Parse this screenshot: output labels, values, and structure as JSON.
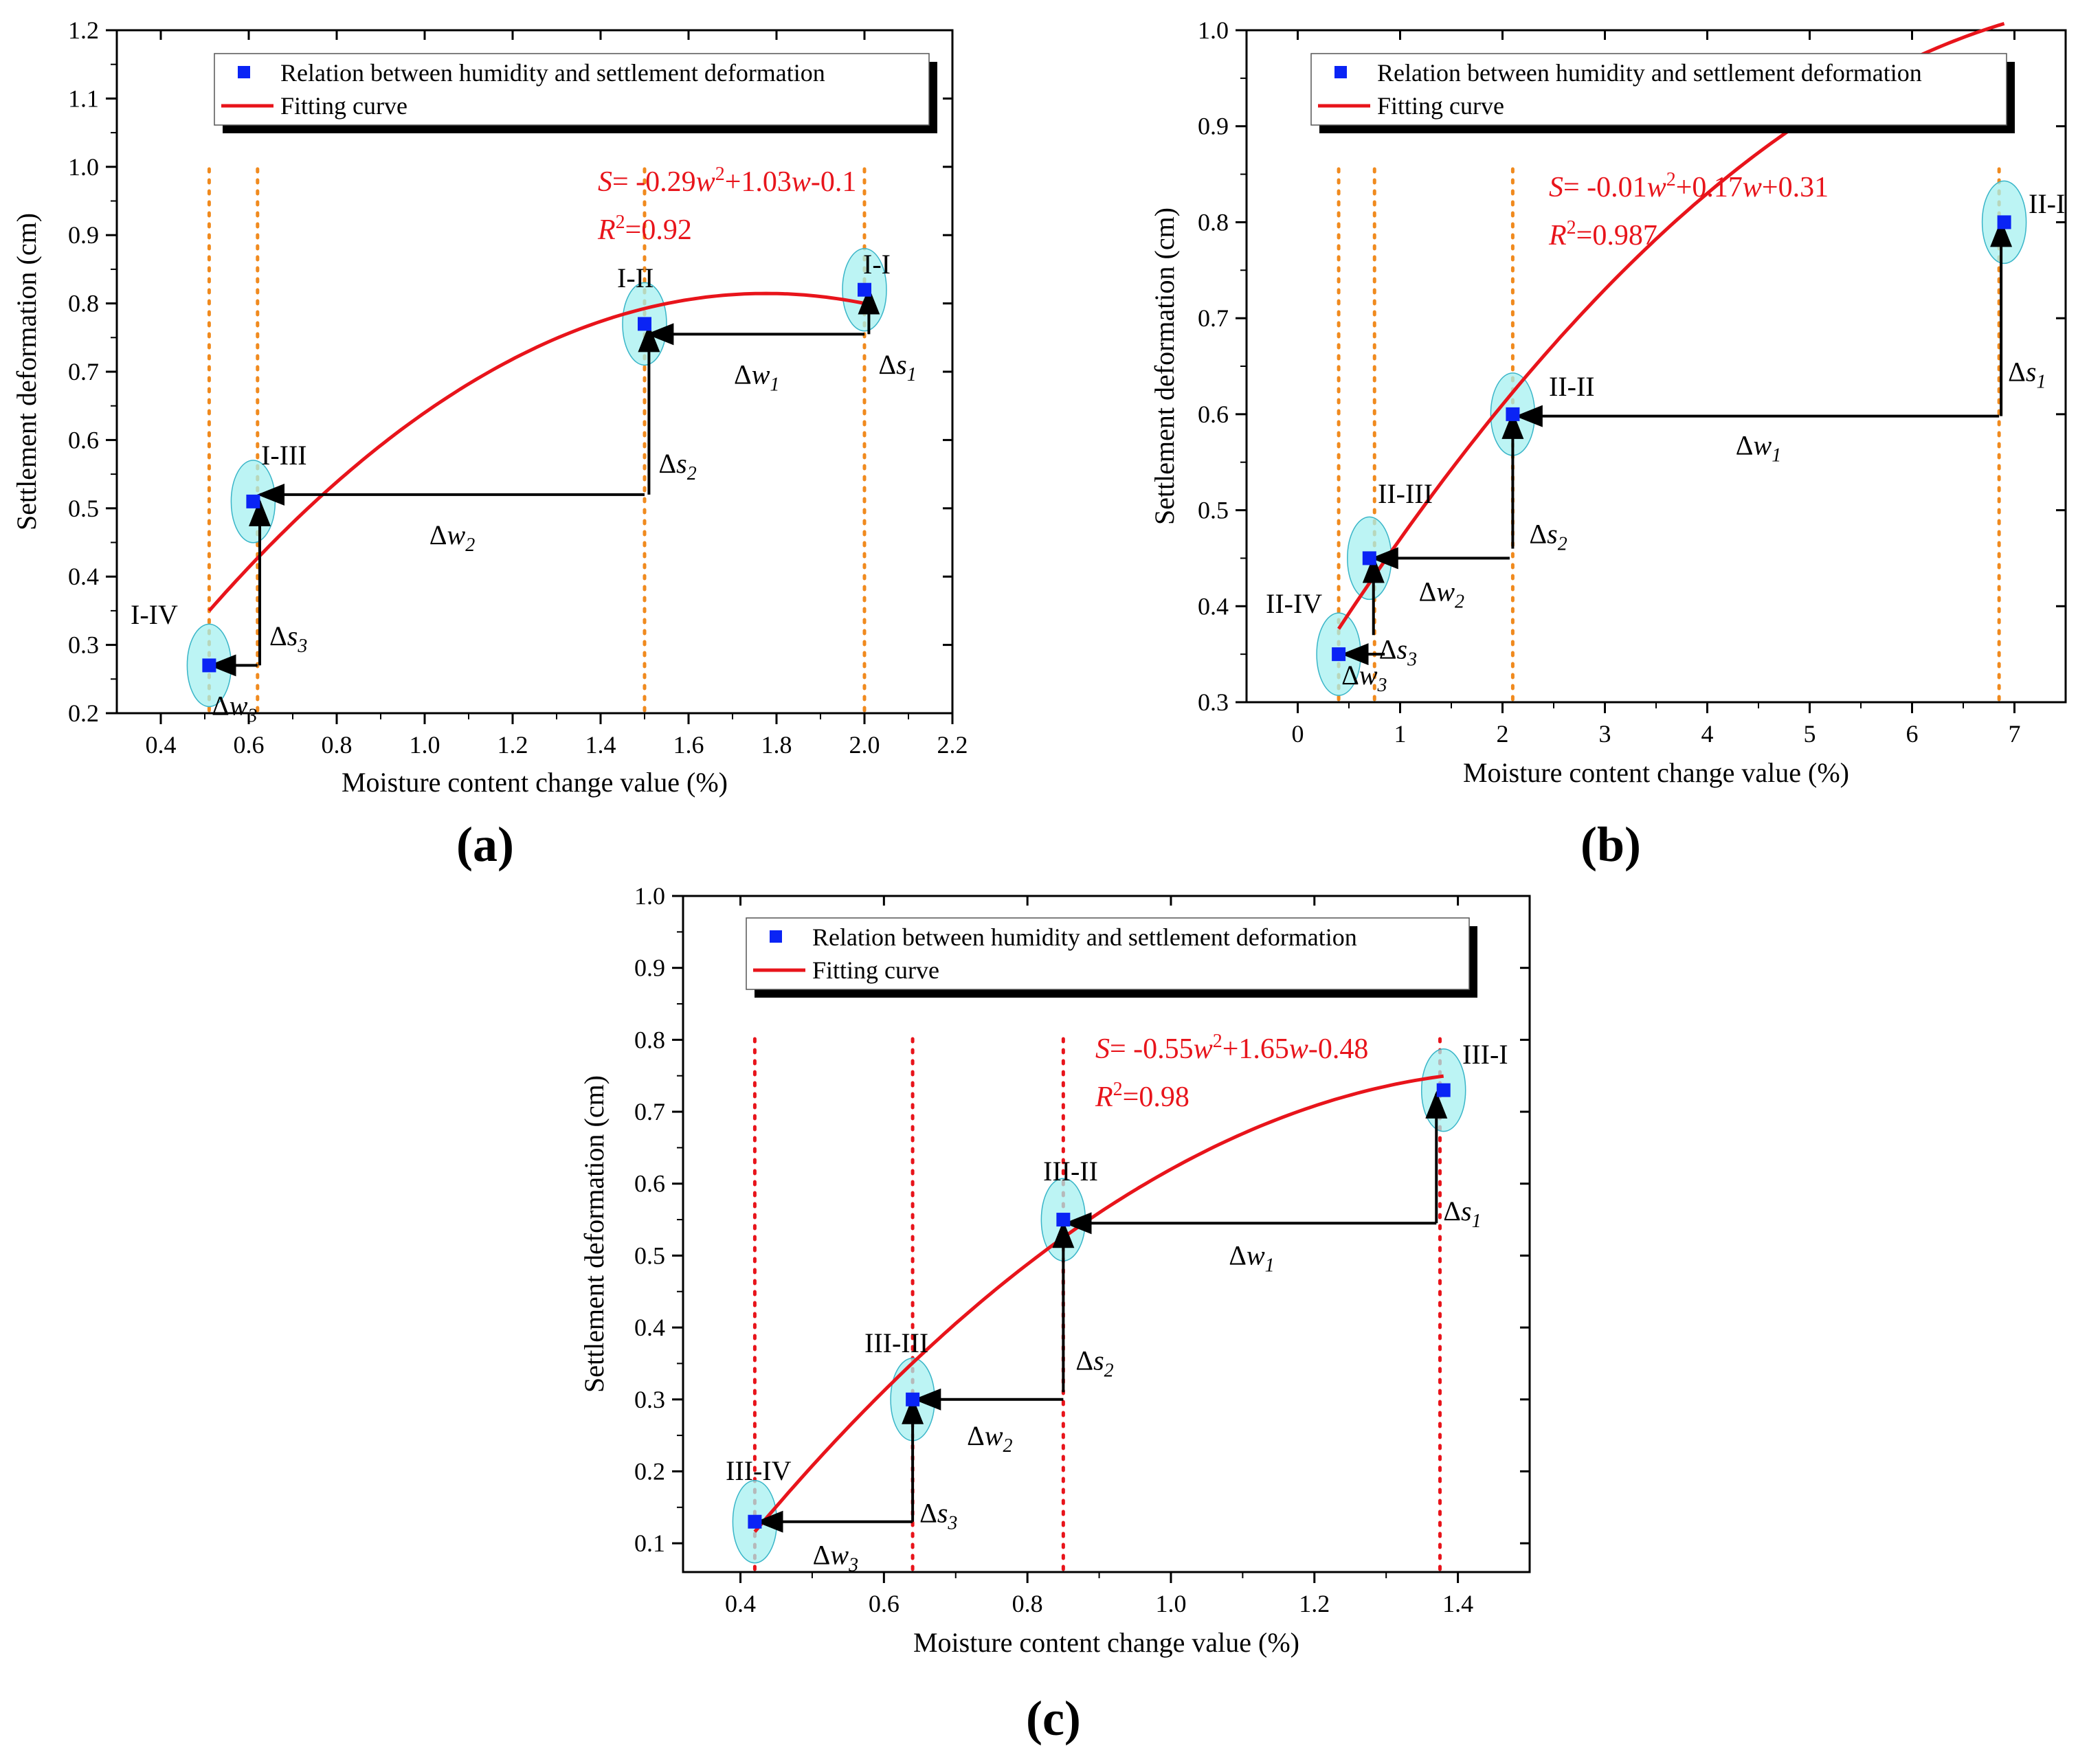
{
  "figure": {
    "panel_labels": [
      "(a)",
      "(b)",
      "(c)"
    ]
  },
  "chart_data": [
    {
      "type": "scatter",
      "panel": "(a)",
      "xlabel": "Moisture content change value (%)",
      "ylabel": "Settlement deformation (cm)",
      "xlim": [
        0.3,
        2.2
      ],
      "ylim": [
        0.2,
        1.2
      ],
      "xticks": [
        0.4,
        0.6,
        0.8,
        1.0,
        1.2,
        1.4,
        1.6,
        1.8,
        2.0,
        2.2
      ],
      "xtick_labels": [
        "0.4",
        "0.6",
        "0.8",
        "1.0",
        "1.2",
        "1.4",
        "1.6",
        "1.8",
        "2.0",
        "2.2"
      ],
      "yticks": [
        0.2,
        0.3,
        0.4,
        0.5,
        0.6,
        0.7,
        0.8,
        0.9,
        1.0,
        1.1,
        1.2
      ],
      "ytick_labels": [
        "0.2",
        "0.3",
        "0.4",
        "0.5",
        "0.6",
        "0.7",
        "0.8",
        "0.9",
        "1.0",
        "1.1",
        "1.2"
      ],
      "legend": {
        "placement": "top-right",
        "entries": [
          "Relation between humidity and settlement deformation",
          "Fitting curve"
        ]
      },
      "colors": {
        "points": "#0a24f5",
        "curve": "#e8141b",
        "guide": "#f08a1e",
        "ellipse": "#a5f0f0",
        "ellipse_edge": "#39b5c8",
        "equation": "#e8141b"
      },
      "points": [
        {
          "x": 2.0,
          "y": 0.82,
          "label": "I-I"
        },
        {
          "x": 1.5,
          "y": 0.77,
          "label": "I-II"
        },
        {
          "x": 0.61,
          "y": 0.51,
          "label": "I-III"
        },
        {
          "x": 0.51,
          "y": 0.27,
          "label": "I-IV"
        }
      ],
      "fit": {
        "a": -0.29,
        "b": 1.03,
        "c": -0.1,
        "x_range": [
          0.51,
          2.0
        ]
      },
      "equation": {
        "s": "S",
        "eq": "= -0.29",
        "w1": "w",
        "sup": "2",
        "mid": "+1.03",
        "w2": "w",
        "tail": "-0.1",
        "r_prefix": "R",
        "r_sup": "2",
        "r_value": "=0.92"
      },
      "guides": [
        0.51,
        0.62,
        1.5,
        2.0
      ],
      "arrows": [
        {
          "type": "w",
          "y": 0.755,
          "from": 2.0,
          "to": 1.51,
          "label": "w",
          "sub": "1"
        },
        {
          "type": "s",
          "x": 2.01,
          "from": 0.755,
          "to": 0.82,
          "label": "s",
          "sub": "1"
        },
        {
          "type": "w",
          "y": 0.52,
          "from": 1.5,
          "to": 0.625,
          "label": "w",
          "sub": "2"
        },
        {
          "type": "s",
          "x": 1.51,
          "from": 0.52,
          "to": 0.765,
          "label": "s",
          "sub": "2"
        },
        {
          "type": "w",
          "y": 0.27,
          "from": 0.62,
          "to": 0.515,
          "label": "w",
          "sub": "3"
        },
        {
          "type": "s",
          "x": 0.625,
          "from": 0.27,
          "to": 0.51,
          "label": "s",
          "sub": "3"
        }
      ]
    },
    {
      "type": "scatter",
      "panel": "(b)",
      "xlabel": "Moisture content change value (%)",
      "ylabel": "Settlement deformation (cm)",
      "xlim": [
        -0.5,
        7.5
      ],
      "ylim": [
        0.3,
        1.0
      ],
      "xticks": [
        0,
        1,
        2,
        3,
        4,
        5,
        6,
        7
      ],
      "xtick_labels": [
        "0",
        "1",
        "2",
        "3",
        "4",
        "5",
        "6",
        "7"
      ],
      "yticks": [
        0.3,
        0.4,
        0.5,
        0.6,
        0.7,
        0.8,
        0.9,
        1.0
      ],
      "ytick_labels": [
        "0.3",
        "0.4",
        "0.5",
        "0.6",
        "0.7",
        "0.8",
        "0.9",
        "1.0"
      ],
      "legend": {
        "placement": "top-right",
        "entries": [
          "Relation between humidity and settlement deformation",
          "Fitting curve"
        ]
      },
      "colors": {
        "points": "#0a24f5",
        "curve": "#e8141b",
        "guide": "#f08a1e",
        "ellipse": "#a5f0f0",
        "ellipse_edge": "#39b5c8",
        "equation": "#e8141b"
      },
      "points": [
        {
          "x": 6.9,
          "y": 0.8,
          "label": "II-I"
        },
        {
          "x": 2.1,
          "y": 0.6,
          "label": "II-II"
        },
        {
          "x": 0.7,
          "y": 0.45,
          "label": "II-III"
        },
        {
          "x": 0.4,
          "y": 0.35,
          "label": "II-IV"
        }
      ],
      "fit": {
        "a": -0.01,
        "b": 0.17,
        "c": 0.31,
        "x_range": [
          0.4,
          6.9
        ]
      },
      "equation": {
        "s": "S",
        "eq": "= -0.01",
        "w1": "w",
        "sup": "2",
        "mid": "+0.17",
        "w2": "w",
        "tail": "+0.31",
        "r_prefix": "R",
        "r_sup": "2",
        "r_value": "=0.987"
      },
      "guides": [
        0.4,
        0.75,
        2.1,
        6.85
      ],
      "arrows": [
        {
          "type": "w",
          "y": 0.598,
          "from": 6.85,
          "to": 2.15,
          "label": "w",
          "sub": "1"
        },
        {
          "type": "s",
          "x": 6.87,
          "from": 0.598,
          "to": 0.8,
          "label": "s",
          "sub": "1"
        },
        {
          "type": "w",
          "y": 0.45,
          "from": 2.07,
          "to": 0.74,
          "label": "w",
          "sub": "2"
        },
        {
          "type": "s",
          "x": 2.1,
          "from": 0.46,
          "to": 0.6,
          "label": "s",
          "sub": "2"
        },
        {
          "type": "w",
          "y": 0.35,
          "from": 0.85,
          "to": 0.45,
          "label": "w",
          "sub": "3"
        },
        {
          "type": "s",
          "x": 0.74,
          "from": 0.37,
          "to": 0.45,
          "label": "s",
          "sub": "3"
        }
      ]
    },
    {
      "type": "scatter",
      "panel": "(c)",
      "xlabel": "Moisture content change value (%)",
      "ylabel": "Settlement deformation (cm)",
      "xlim": [
        0.32,
        1.5
      ],
      "ylim": [
        0.06,
        1.0
      ],
      "xticks": [
        0.4,
        0.6,
        0.8,
        1.0,
        1.2,
        1.4
      ],
      "xtick_labels": [
        "0.4",
        "0.6",
        "0.8",
        "1.0",
        "1.2",
        "1.4"
      ],
      "yticks": [
        0.1,
        0.2,
        0.3,
        0.4,
        0.5,
        0.6,
        0.7,
        0.8,
        0.9,
        1.0
      ],
      "ytick_labels": [
        "0.1",
        "0.2",
        "0.3",
        "0.4",
        "0.5",
        "0.6",
        "0.7",
        "0.8",
        "0.9",
        "1.0"
      ],
      "legend": {
        "placement": "top-right",
        "entries": [
          "Relation between humidity and settlement deformation",
          "Fitting curve"
        ]
      },
      "colors": {
        "points": "#0a24f5",
        "curve": "#e8141b",
        "guide": "#e8141b",
        "ellipse": "#a5f0f0",
        "ellipse_edge": "#39b5c8",
        "equation": "#e8141b"
      },
      "points": [
        {
          "x": 1.38,
          "y": 0.73,
          "label": "III-I"
        },
        {
          "x": 0.85,
          "y": 0.55,
          "label": "III-II"
        },
        {
          "x": 0.64,
          "y": 0.3,
          "label": "III-III"
        },
        {
          "x": 0.42,
          "y": 0.13,
          "label": "III-IV"
        }
      ],
      "fit": {
        "a": -0.55,
        "b": 1.65,
        "c": -0.48,
        "x_range": [
          0.42,
          1.38
        ]
      },
      "equation": {
        "s": "S",
        "eq": "= -0.55",
        "w1": "w",
        "sup": "2",
        "mid": "+1.65",
        "w2": "w",
        "tail": "-0.48",
        "r_prefix": "R",
        "r_sup": "2",
        "r_value": "=0.98"
      },
      "guides": [
        0.42,
        0.64,
        0.85,
        1.375
      ],
      "arrows": [
        {
          "type": "w",
          "y": 0.545,
          "from": 1.37,
          "to": 0.855,
          "label": "w",
          "sub": "1"
        },
        {
          "type": "s",
          "x": 1.37,
          "from": 0.545,
          "to": 0.725,
          "label": "s",
          "sub": "1"
        },
        {
          "type": "w",
          "y": 0.3,
          "from": 0.85,
          "to": 0.645,
          "label": "w",
          "sub": "2"
        },
        {
          "type": "s",
          "x": 0.85,
          "from": 0.31,
          "to": 0.545,
          "label": "s",
          "sub": "2"
        },
        {
          "type": "w",
          "y": 0.13,
          "from": 0.64,
          "to": 0.425,
          "label": "w",
          "sub": "3"
        },
        {
          "type": "s",
          "x": 0.64,
          "from": 0.13,
          "to": 0.3,
          "label": "s",
          "sub": "3"
        }
      ]
    }
  ]
}
